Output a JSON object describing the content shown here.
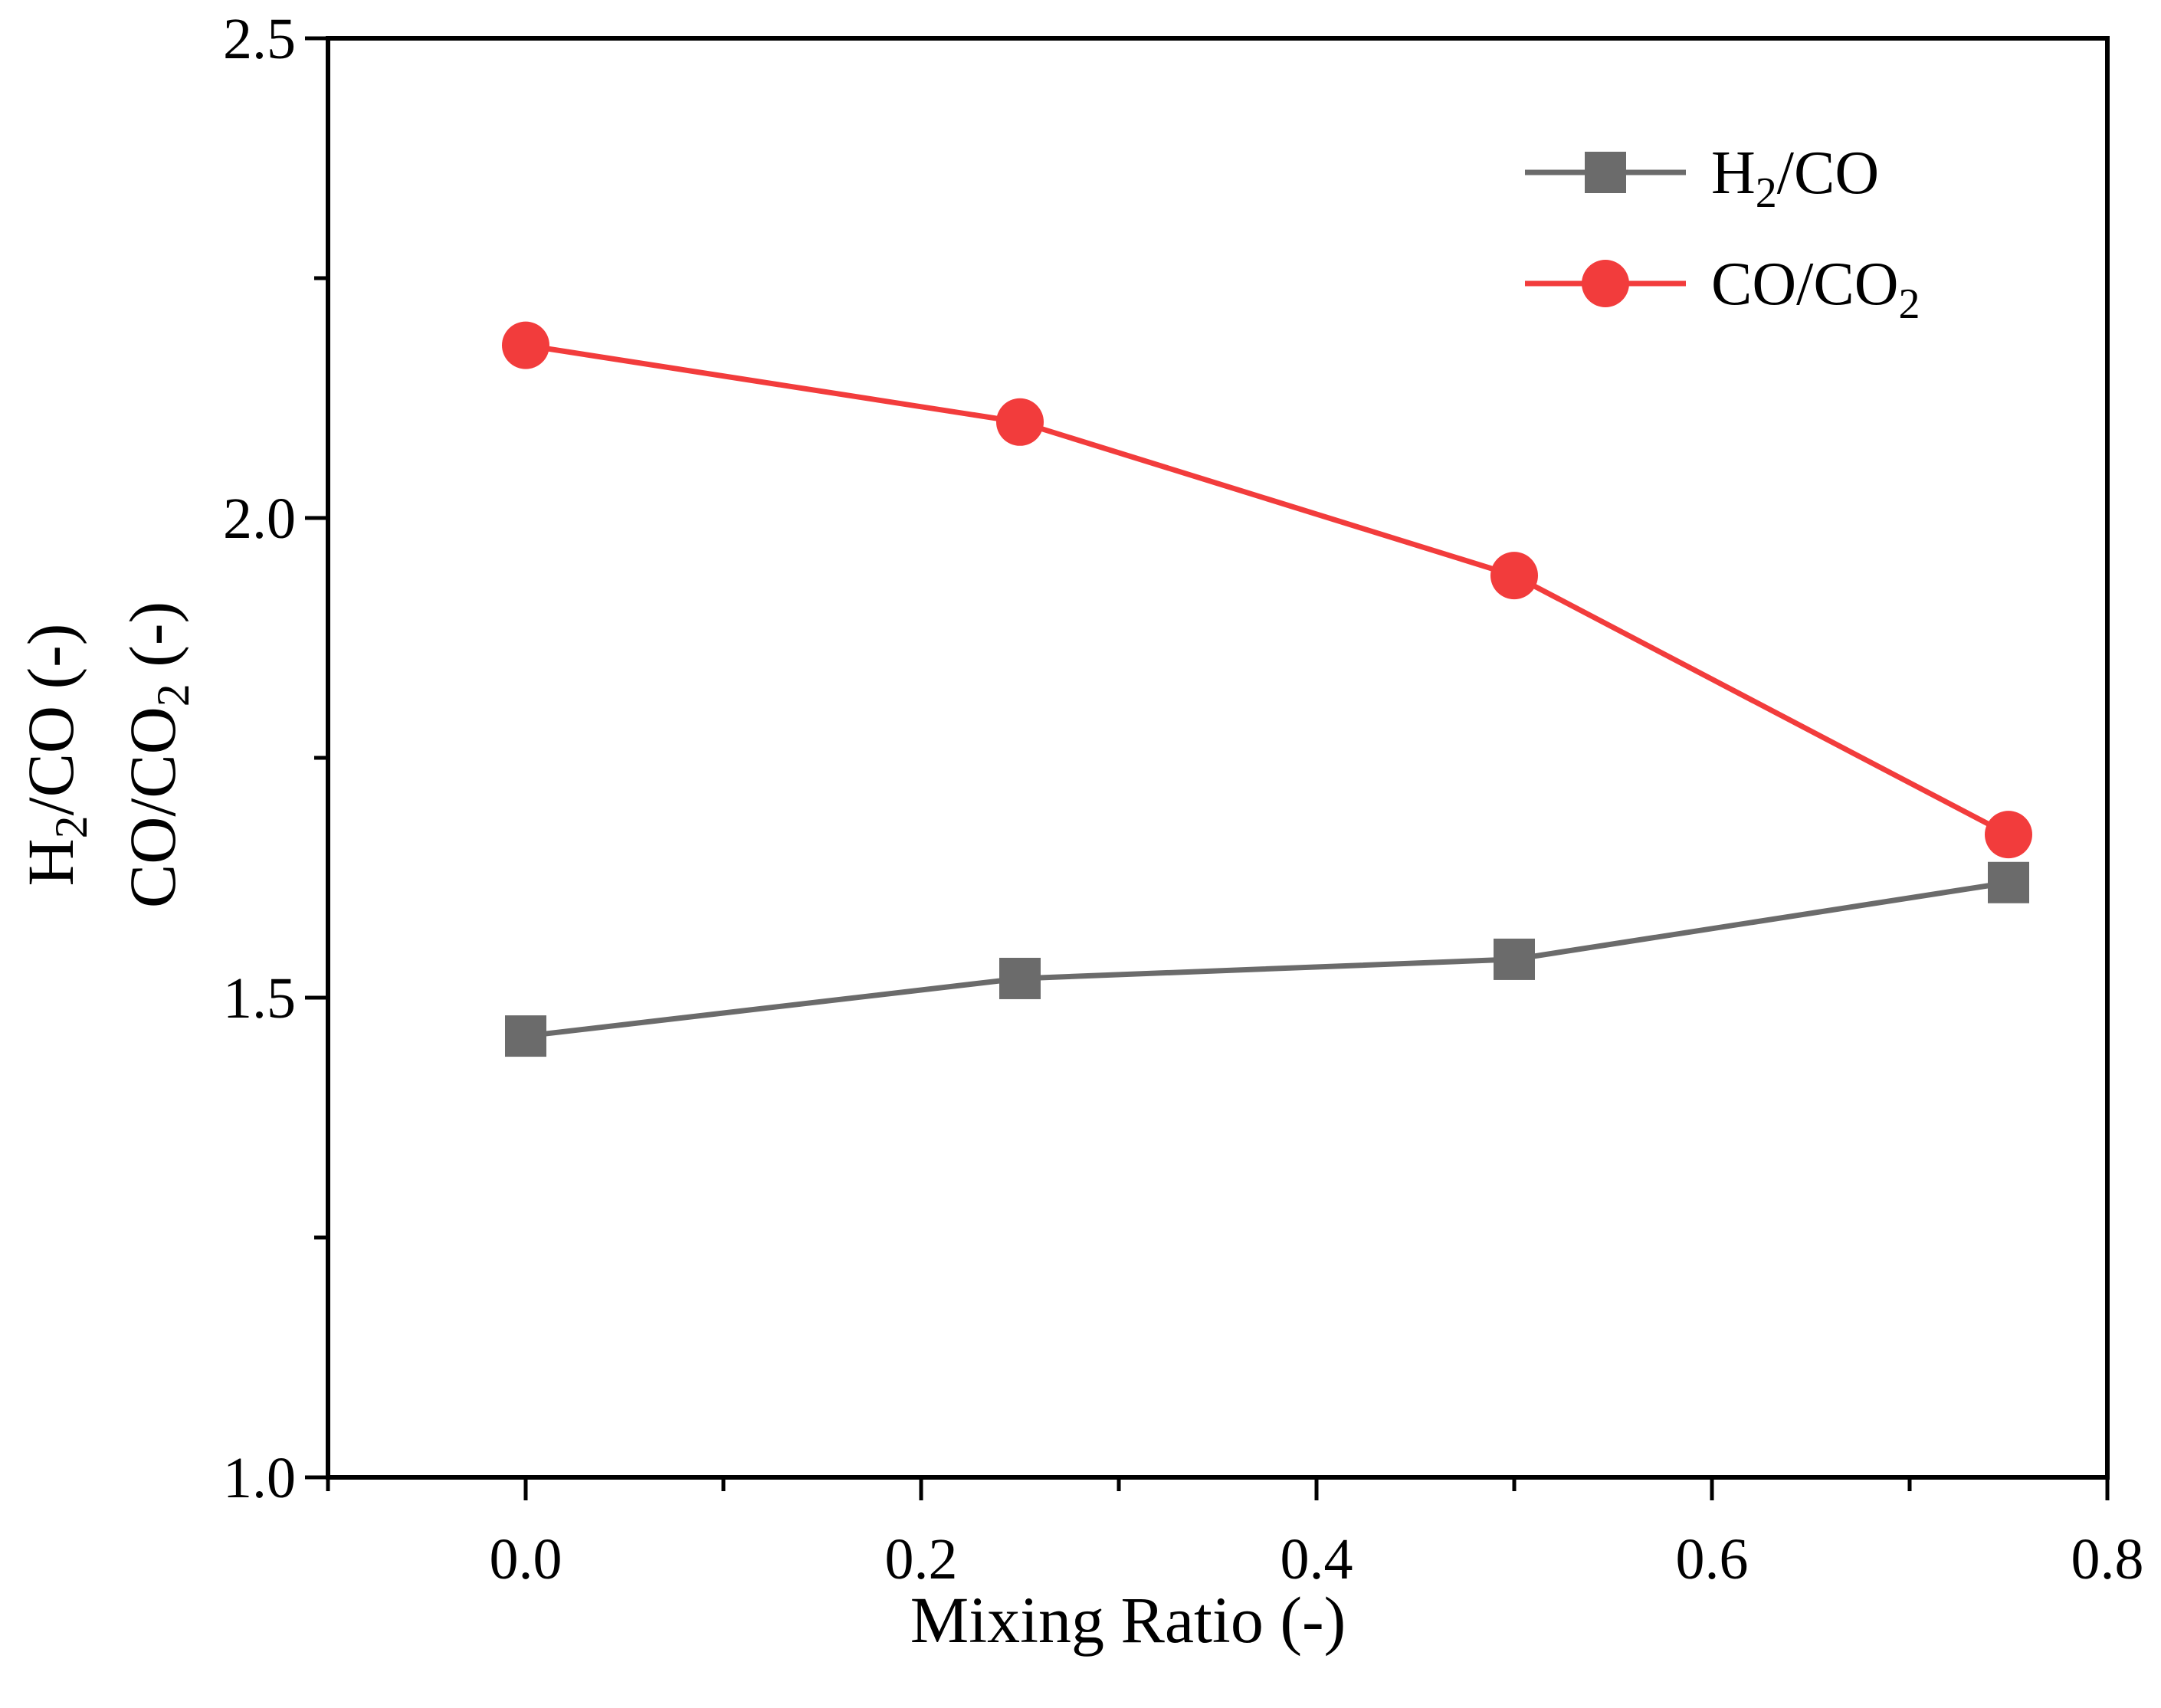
{
  "chart_data": {
    "type": "line",
    "title": "",
    "xlabel": "Mixing Ratio (-)",
    "ylabel": {
      "line1": {
        "pre": "H",
        "sub": "2",
        "post": "/CO (-)"
      },
      "line2": {
        "pre": "CO/CO",
        "sub": "2",
        "post": " (-)"
      }
    },
    "xlim": [
      -0.1,
      0.8
    ],
    "ylim": [
      1.0,
      2.5
    ],
    "x_ticks": [
      0.0,
      0.2,
      0.4,
      0.6,
      0.8
    ],
    "x_tick_labels": [
      "0.0",
      "0.2",
      "0.4",
      "0.6",
      "0.8"
    ],
    "x_minor_ticks": [
      -0.1,
      0.1,
      0.3,
      0.5,
      0.7
    ],
    "y_ticks": [
      1.0,
      1.5,
      2.0,
      2.5
    ],
    "y_tick_labels": [
      "1.0",
      "1.5",
      "2.0",
      "2.5"
    ],
    "y_minor_ticks": [
      1.25,
      1.75,
      2.25
    ],
    "grid": false,
    "legend_position": "top-right",
    "series": [
      {
        "name": "H2/CO",
        "legend": {
          "pre": "H",
          "sub": "2",
          "post": "/CO"
        },
        "x": [
          0.0,
          0.25,
          0.5,
          0.75
        ],
        "values": [
          1.46,
          1.52,
          1.54,
          1.62
        ],
        "marker": "square",
        "color": "#6b6b6b"
      },
      {
        "name": "CO/CO2",
        "legend": {
          "pre": "CO/CO",
          "sub": "2",
          "post": ""
        },
        "x": [
          0.0,
          0.25,
          0.5,
          0.75
        ],
        "values": [
          2.18,
          2.1,
          1.94,
          1.67
        ],
        "marker": "circle",
        "color": "#f23c3c"
      }
    ]
  }
}
